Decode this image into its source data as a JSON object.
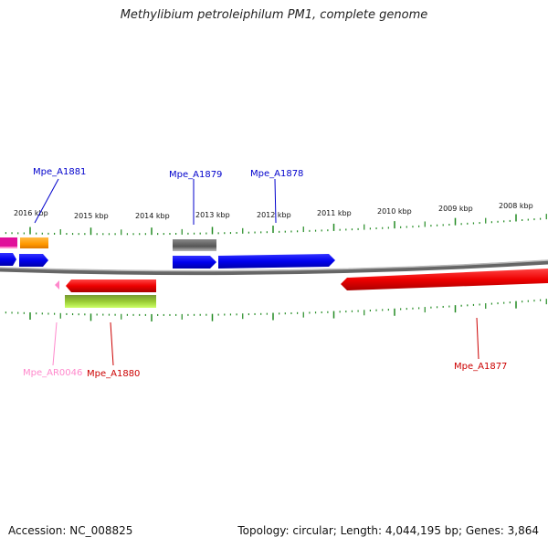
{
  "title": "Methylibium petroleiphilum PM1, complete genome",
  "accession": "Accession: NC_008825",
  "summary": "Topology: circular; Length: 4,044,195 bp; Genes: 3,864",
  "ruler_labels": [
    "2016 kbp",
    "2015 kbp",
    "2014 kbp",
    "2013 kbp",
    "2012 kbp",
    "2011 kbp",
    "2010 kbp",
    "2009 kbp",
    "2008 kbp"
  ],
  "gene_labels": {
    "mpe_a1881": "Mpe_A1881",
    "mpe_a1879": "Mpe_A1879",
    "mpe_a1878": "Mpe_A1878",
    "mpe_ar0046": "Mpe_AR0046",
    "mpe_a1880": "Mpe_A1880",
    "mpe_a1877": "Mpe_A1877"
  },
  "colors": {
    "forward_cds": "#0000ee",
    "reverse_cds": "#ee0000",
    "rna": "#ff88cc",
    "backbone": "#888888",
    "ticks": "#228b22",
    "feature_orange": "#ff9900",
    "feature_magenta": "#e0109a",
    "feature_gray": "#666666",
    "feature_green": "#77cc22"
  }
}
